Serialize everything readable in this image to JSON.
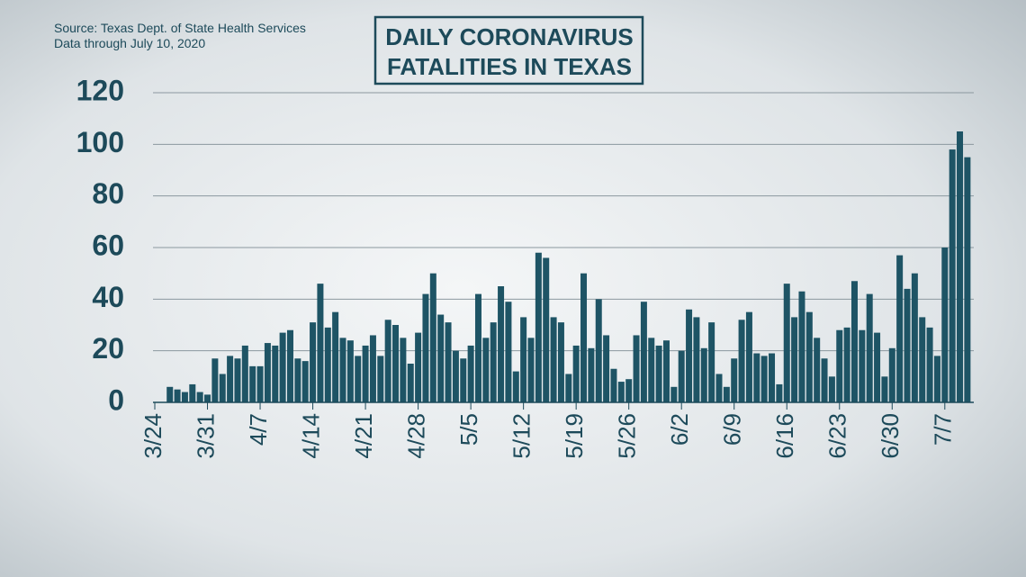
{
  "chart_data": {
    "type": "bar",
    "title": "DAILY CORONAVIRUS",
    "subtitle": "FATALITIES IN TEXAS",
    "source": "Source: Texas Dept. of State Health Services",
    "note": "Data through July 10, 2020",
    "categories": [
      "3/24",
      null,
      null,
      null,
      null,
      null,
      null,
      "3/31",
      null,
      null,
      null,
      null,
      null,
      null,
      "4/7",
      null,
      null,
      null,
      null,
      null,
      null,
      "4/14",
      null,
      null,
      null,
      null,
      null,
      null,
      "4/21",
      null,
      null,
      null,
      null,
      null,
      null,
      "4/28",
      null,
      null,
      null,
      null,
      null,
      null,
      "5/5",
      null,
      null,
      null,
      null,
      null,
      null,
      "5/12",
      null,
      null,
      null,
      null,
      null,
      null,
      "5/19",
      null,
      null,
      null,
      null,
      null,
      null,
      "5/26",
      null,
      null,
      null,
      null,
      null,
      null,
      "6/2",
      null,
      null,
      null,
      null,
      null,
      null,
      "6/9",
      null,
      null,
      null,
      null,
      null,
      null,
      "6/16",
      null,
      null,
      null,
      null,
      null,
      null,
      "6/23",
      null,
      null,
      null,
      null,
      null,
      null,
      "6/30",
      null,
      null,
      null,
      null,
      null,
      null,
      "7/7",
      null,
      null,
      null
    ],
    "values": [
      0,
      0,
      6,
      5,
      4,
      7,
      4,
      3,
      17,
      11,
      18,
      17,
      22,
      14,
      14,
      23,
      22,
      27,
      28,
      17,
      16,
      31,
      46,
      29,
      35,
      25,
      24,
      18,
      22,
      26,
      18,
      32,
      30,
      25,
      15,
      27,
      42,
      50,
      34,
      31,
      20,
      17,
      22,
      42,
      25,
      31,
      45,
      39,
      12,
      33,
      25,
      58,
      56,
      33,
      31,
      11,
      22,
      50,
      21,
      40,
      26,
      13,
      8,
      9,
      26,
      39,
      25,
      22,
      24,
      6,
      20,
      36,
      33,
      21,
      31,
      11,
      6,
      17,
      32,
      35,
      19,
      18,
      19,
      7,
      46,
      33,
      43,
      35,
      25,
      17,
      10,
      28,
      29,
      47,
      28,
      42,
      27,
      10,
      21,
      57,
      44,
      50,
      33,
      29,
      18,
      60,
      98,
      105,
      95
    ],
    "color": "#1e5465",
    "ylim": [
      0,
      120
    ],
    "yticks": [
      0,
      20,
      40,
      60,
      80,
      100,
      120
    ],
    "grid": true
  }
}
